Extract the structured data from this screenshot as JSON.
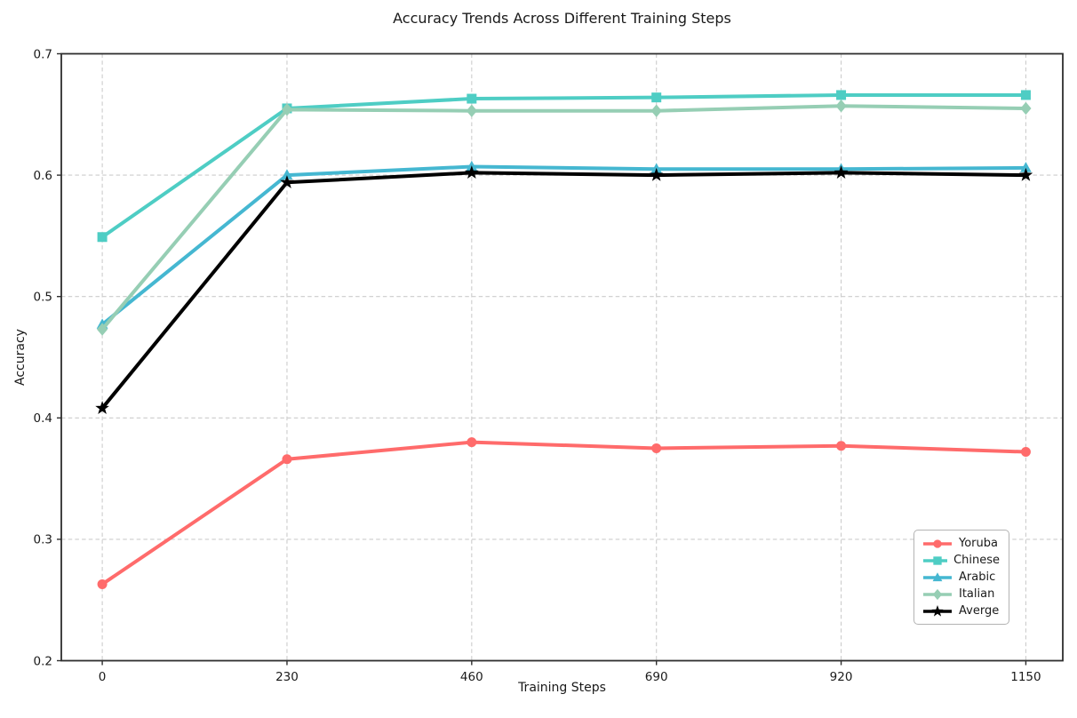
{
  "chart_data": {
    "type": "line",
    "title": "Accuracy Trends Across Different Training Steps",
    "xlabel": "Training Steps",
    "ylabel": "Accuracy",
    "x": [
      0,
      230,
      460,
      690,
      920,
      1150
    ],
    "x_tick_labels": [
      "0",
      "230",
      "460",
      "690",
      "920",
      "1150"
    ],
    "y_ticks": [
      0.2,
      0.3,
      0.4,
      0.5,
      0.6,
      0.7
    ],
    "y_tick_labels": [
      "0.2",
      "0.3",
      "0.4",
      "0.5",
      "0.6",
      "0.7"
    ],
    "xlim": [
      -51,
      1196
    ],
    "ylim": [
      0.2,
      0.7
    ],
    "grid": true,
    "grid_style": "dashed",
    "grid_color": "#cccccc",
    "axis_color": "#2e2e2e",
    "legend_position": "lower-right",
    "series": [
      {
        "name": "Yoruba",
        "color": "#FF6B6B",
        "marker": "circle",
        "values": [
          0.263,
          0.366,
          0.38,
          0.375,
          0.377,
          0.372
        ]
      },
      {
        "name": "Chinese",
        "color": "#4ECDC4",
        "marker": "square",
        "values": [
          0.549,
          0.655,
          0.663,
          0.664,
          0.666,
          0.666
        ]
      },
      {
        "name": "Arabic",
        "color": "#45B7D1",
        "marker": "triangle",
        "values": [
          0.477,
          0.6,
          0.607,
          0.605,
          0.605,
          0.606
        ]
      },
      {
        "name": "Italian",
        "color": "#96CEB4",
        "marker": "diamond",
        "values": [
          0.473,
          0.654,
          0.653,
          0.653,
          0.657,
          0.655
        ]
      },
      {
        "name": "Averge",
        "color": "#000000",
        "marker": "star",
        "values": [
          0.408,
          0.594,
          0.602,
          0.6,
          0.602,
          0.6
        ]
      }
    ]
  }
}
